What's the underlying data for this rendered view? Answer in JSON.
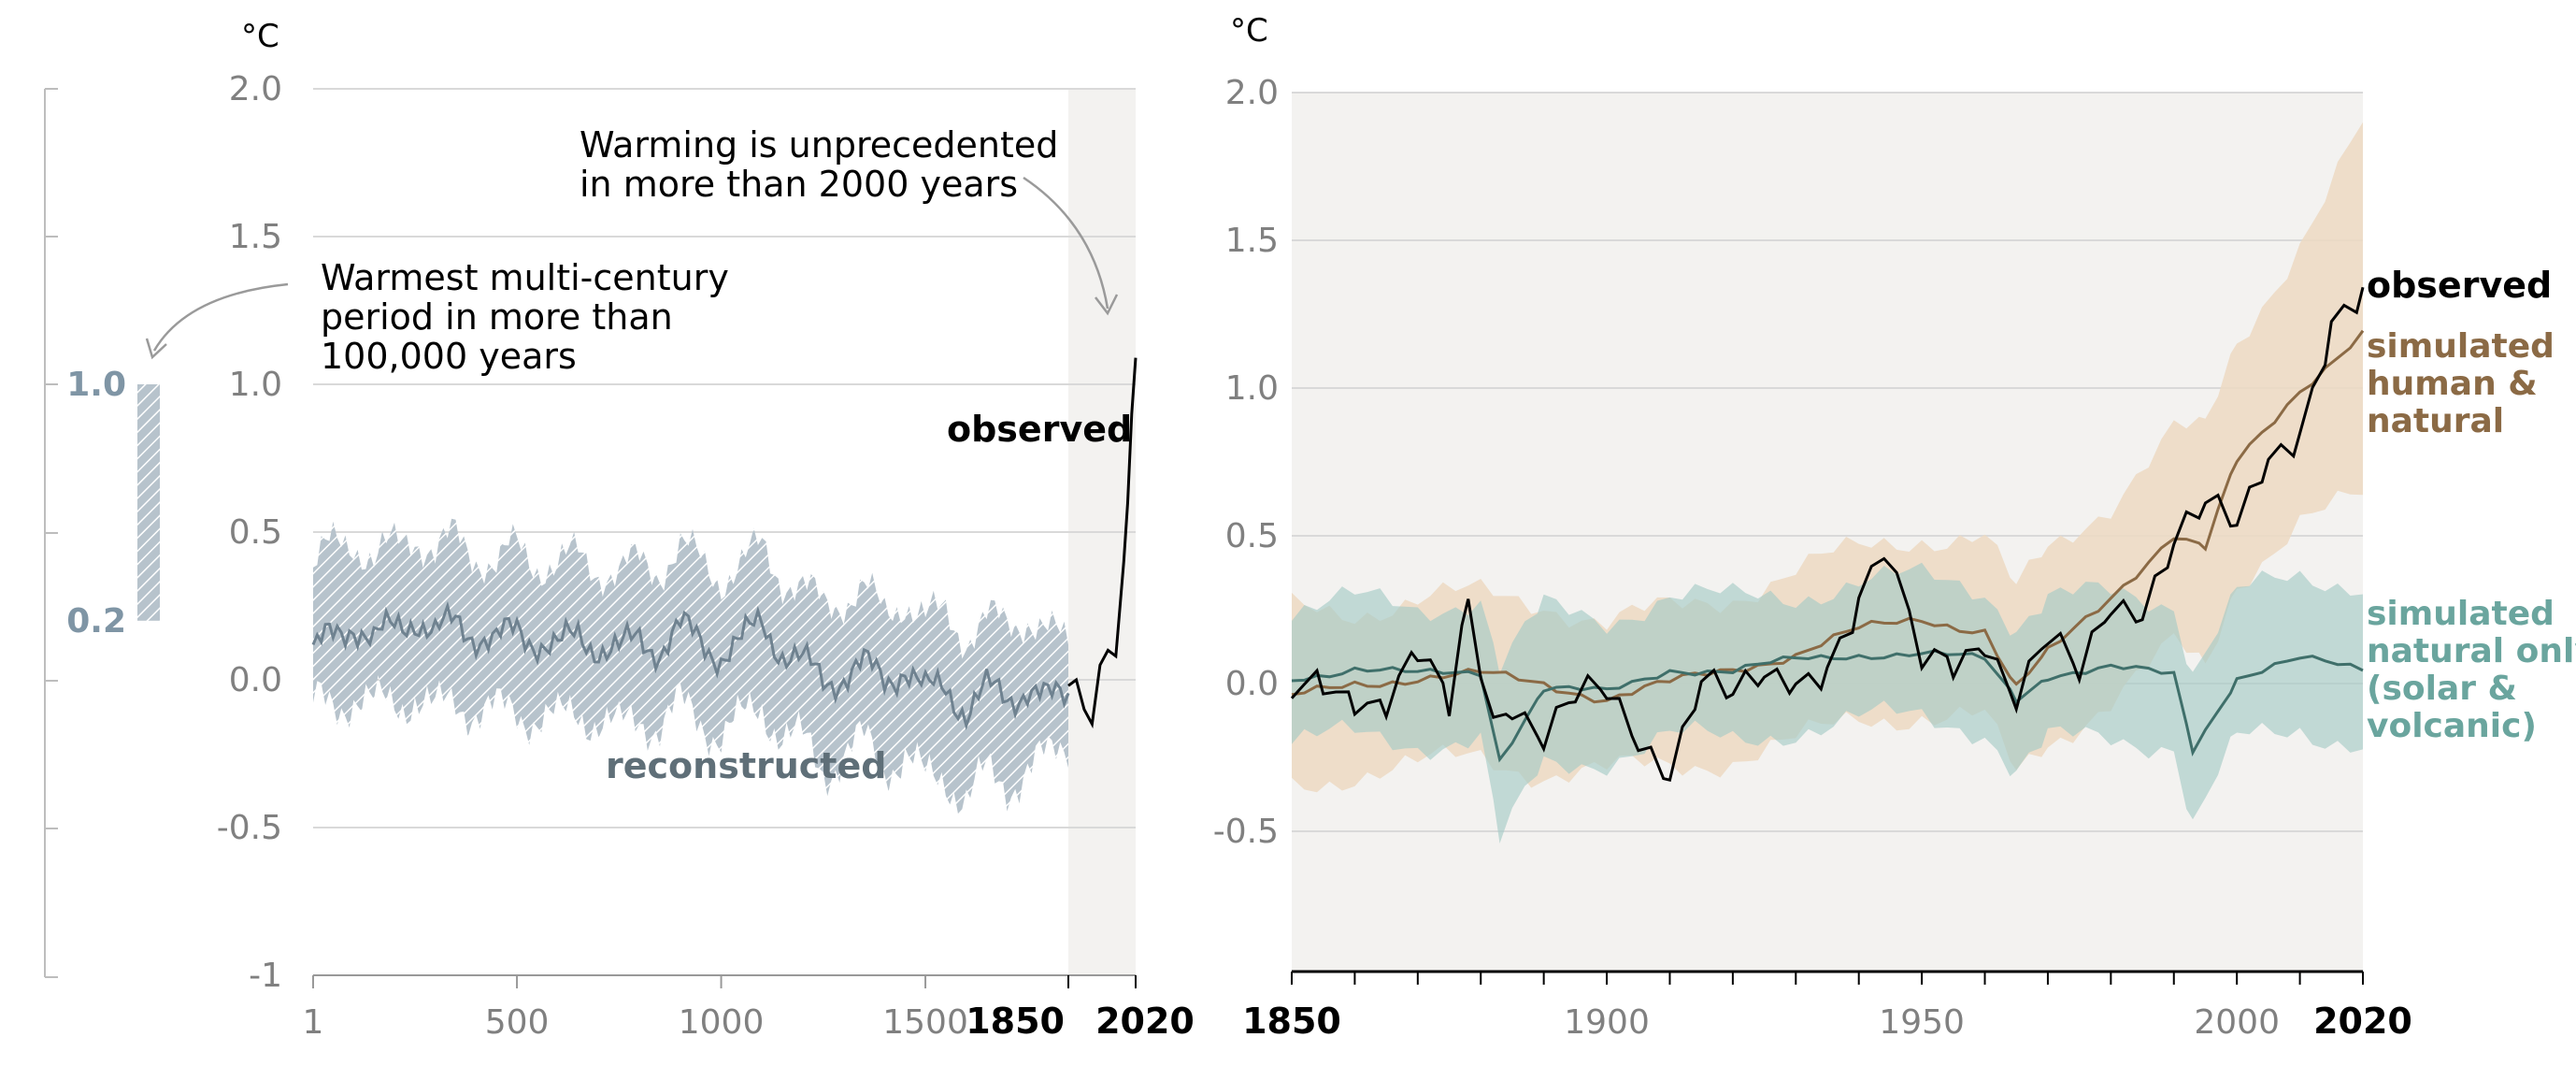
{
  "chart_data": [
    {
      "type": "line",
      "panel": "left",
      "unit_label": "°C",
      "ylim": [
        -1,
        2
      ],
      "y_ticks": [
        "2.0",
        "1.5",
        "1.0",
        "0.5",
        "0.0",
        "-0.5",
        "-1"
      ],
      "x_ticks": [
        "1",
        "500",
        "1000",
        "1500"
      ],
      "x_ticks_bold": [
        "1850",
        "2020"
      ],
      "grid": true,
      "shaded_period": [
        1850,
        2020
      ],
      "series": [
        {
          "name": "reconstructed",
          "color": "#6f8290",
          "band_color": "#b7c3cc",
          "x": [
            1,
            50,
            100,
            150,
            200,
            250,
            300,
            350,
            400,
            450,
            500,
            550,
            600,
            650,
            700,
            750,
            800,
            850,
            900,
            950,
            1000,
            1050,
            1100,
            1150,
            1200,
            1250,
            1300,
            1350,
            1400,
            1450,
            1500,
            1550,
            1600,
            1650,
            1700,
            1750,
            1800,
            1850
          ],
          "y": [
            0.08,
            0.15,
            0.2,
            0.12,
            0.18,
            0.22,
            0.14,
            0.2,
            0.16,
            0.12,
            0.17,
            0.14,
            0.1,
            0.15,
            0.12,
            0.09,
            0.14,
            0.11,
            0.17,
            0.13,
            0.09,
            0.12,
            0.2,
            0.1,
            0.05,
            0.0,
            0.02,
            0.04,
            0.0,
            0.05,
            -0.05,
            -0.02,
            -0.1,
            -0.04,
            -0.06,
            -0.02,
            -0.08,
            -0.05
          ],
          "low": [
            -0.1,
            -0.08,
            -0.05,
            -0.1,
            -0.07,
            -0.05,
            -0.12,
            -0.06,
            -0.1,
            -0.12,
            -0.1,
            -0.12,
            -0.15,
            -0.1,
            -0.13,
            -0.18,
            -0.12,
            -0.15,
            -0.1,
            -0.13,
            -0.18,
            -0.15,
            -0.08,
            -0.18,
            -0.22,
            -0.3,
            -0.25,
            -0.22,
            -0.28,
            -0.25,
            -0.35,
            -0.32,
            -0.4,
            -0.33,
            -0.35,
            -0.3,
            -0.28,
            -0.2
          ],
          "high": [
            0.38,
            0.45,
            0.48,
            0.4,
            0.45,
            0.5,
            0.42,
            0.48,
            0.43,
            0.38,
            0.45,
            0.4,
            0.38,
            0.42,
            0.38,
            0.35,
            0.4,
            0.38,
            0.44,
            0.4,
            0.35,
            0.38,
            0.45,
            0.35,
            0.3,
            0.25,
            0.28,
            0.3,
            0.22,
            0.28,
            0.2,
            0.22,
            0.15,
            0.2,
            0.18,
            0.22,
            0.15,
            0.12
          ]
        },
        {
          "name": "observed",
          "color": "#000000",
          "x": [
            1850,
            1870,
            1890,
            1910,
            1930,
            1950,
            1970,
            1990,
            2000,
            2010,
            2020
          ],
          "y": [
            -0.02,
            0.0,
            -0.1,
            -0.15,
            0.05,
            0.1,
            0.08,
            0.4,
            0.6,
            0.9,
            1.09
          ]
        }
      ],
      "range_bar": {
        "high": 1.0,
        "low": 0.2,
        "high_label": "1.0",
        "low_label": "0.2"
      },
      "annotations": {
        "warmest": [
          "Warmest multi-century",
          "period in more than",
          "100,000 years"
        ],
        "unprecedented": [
          "Warming is unprecedented",
          "in more than 2000 years"
        ]
      }
    },
    {
      "type": "line",
      "panel": "right",
      "unit_label": "°C",
      "ylim": [
        -1,
        2
      ],
      "y_ticks": [
        "2.0",
        "1.5",
        "1.0",
        "0.5",
        "0.0",
        "-0.5"
      ],
      "x_ticks": [
        "1900",
        "1950",
        "2000"
      ],
      "x_ticks_bold": [
        "1850",
        "2020"
      ],
      "xlim": [
        1850,
        2020
      ],
      "grid": true,
      "series": [
        {
          "name": "simulated human & natural",
          "color": "#8b6a45",
          "band_color": "#ecd9c2",
          "x": [
            1850,
            1860,
            1870,
            1880,
            1890,
            1900,
            1910,
            1920,
            1930,
            1940,
            1950,
            1960,
            1965,
            1970,
            1980,
            1990,
            1995,
            2000,
            2010,
            2020
          ],
          "y": [
            -0.05,
            0.0,
            0.02,
            0.03,
            0.0,
            -0.05,
            0.0,
            0.05,
            0.1,
            0.18,
            0.22,
            0.18,
            -0.02,
            0.1,
            0.3,
            0.5,
            0.45,
            0.75,
            1.0,
            1.18
          ],
          "low": [
            -0.35,
            -0.3,
            -0.28,
            -0.25,
            -0.3,
            -0.3,
            -0.28,
            -0.25,
            -0.2,
            -0.12,
            -0.1,
            -0.12,
            -0.32,
            -0.2,
            -0.05,
            0.12,
            0.05,
            0.35,
            0.55,
            0.62
          ],
          "high": [
            0.25,
            0.25,
            0.28,
            0.3,
            0.28,
            0.2,
            0.25,
            0.3,
            0.38,
            0.45,
            0.5,
            0.5,
            0.3,
            0.45,
            0.62,
            0.85,
            0.85,
            1.15,
            1.5,
            1.88
          ]
        },
        {
          "name": "simulated natural only (solar & volcanic)",
          "color": "#3f6f6a",
          "band_color": "#a6cbc6",
          "x": [
            1850,
            1860,
            1870,
            1880,
            1883,
            1890,
            1900,
            1910,
            1920,
            1930,
            1940,
            1950,
            1960,
            1965,
            1970,
            1980,
            1990,
            1993,
            2000,
            2010,
            2020
          ],
          "y": [
            0.02,
            0.05,
            0.03,
            0.04,
            -0.25,
            -0.02,
            -0.03,
            0.05,
            0.04,
            0.08,
            0.1,
            0.1,
            0.08,
            -0.05,
            0.03,
            0.05,
            0.03,
            -0.22,
            0.02,
            0.08,
            0.05
          ],
          "low": [
            -0.2,
            -0.18,
            -0.2,
            -0.18,
            -0.55,
            -0.28,
            -0.25,
            -0.18,
            -0.2,
            -0.15,
            -0.12,
            -0.12,
            -0.15,
            -0.3,
            -0.2,
            -0.18,
            -0.2,
            -0.48,
            -0.2,
            -0.15,
            -0.2
          ],
          "high": [
            0.25,
            0.28,
            0.25,
            0.3,
            0.05,
            0.25,
            0.22,
            0.3,
            0.28,
            0.3,
            0.35,
            0.35,
            0.32,
            0.2,
            0.28,
            0.3,
            0.28,
            0.05,
            0.3,
            0.35,
            0.35
          ]
        },
        {
          "name": "observed",
          "color": "#000000",
          "x": [
            1850,
            1855,
            1860,
            1865,
            1870,
            1875,
            1878,
            1882,
            1885,
            1890,
            1895,
            1900,
            1905,
            1910,
            1915,
            1920,
            1925,
            1930,
            1935,
            1940,
            1944,
            1950,
            1955,
            1960,
            1965,
            1970,
            1975,
            1980,
            1985,
            1990,
            1995,
            2000,
            2005,
            2010,
            2015,
            2020
          ],
          "y": [
            -0.05,
            0.05,
            0.0,
            -0.08,
            0.05,
            -0.1,
            0.3,
            -0.08,
            -0.02,
            -0.2,
            -0.1,
            -0.05,
            -0.15,
            -0.25,
            0.0,
            -0.1,
            0.0,
            0.05,
            0.1,
            0.25,
            0.4,
            0.05,
            0.1,
            0.2,
            -0.05,
            0.1,
            0.0,
            0.3,
            0.3,
            0.48,
            0.55,
            0.5,
            0.8,
            0.9,
            1.2,
            1.25
          ]
        }
      ],
      "labels": {
        "observed": "observed",
        "human": [
          "simulated",
          "human &",
          "natural"
        ],
        "natural": [
          "simulated",
          "natural only",
          "(solar &",
          "volcanic)"
        ]
      }
    }
  ]
}
